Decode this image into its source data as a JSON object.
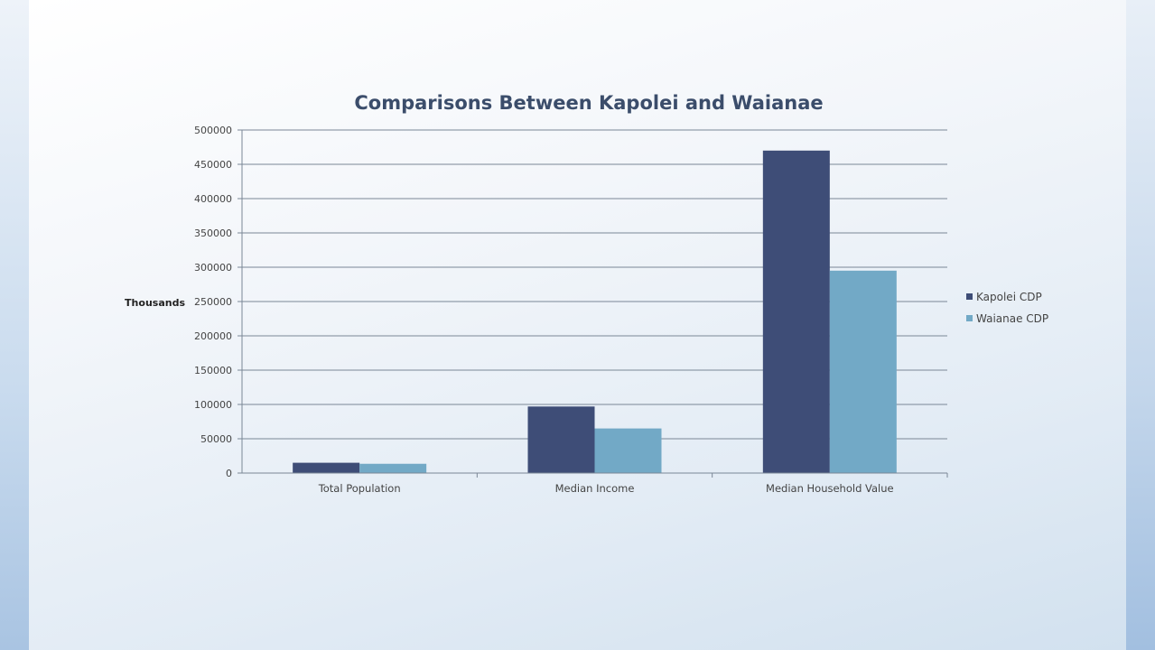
{
  "chart_data": {
    "type": "bar",
    "title": "Comparisons Between Kapolei and Waianae",
    "xlabel": "",
    "ylabel": "Thousands",
    "categories": [
      "Total Population",
      "Median Income",
      "Median Household Value"
    ],
    "series": [
      {
        "name": "Kapolei CDP",
        "values": [
          15000,
          97000,
          470000
        ],
        "color": "#3e4d77"
      },
      {
        "name": "Waianae CDP",
        "values": [
          13500,
          65000,
          295000
        ],
        "color": "#72a9c6"
      }
    ],
    "ylim": [
      0,
      500000
    ],
    "yticks": [
      0,
      50000,
      100000,
      150000,
      200000,
      250000,
      300000,
      350000,
      400000,
      450000,
      500000
    ],
    "grid": true,
    "legend_position": "right"
  }
}
